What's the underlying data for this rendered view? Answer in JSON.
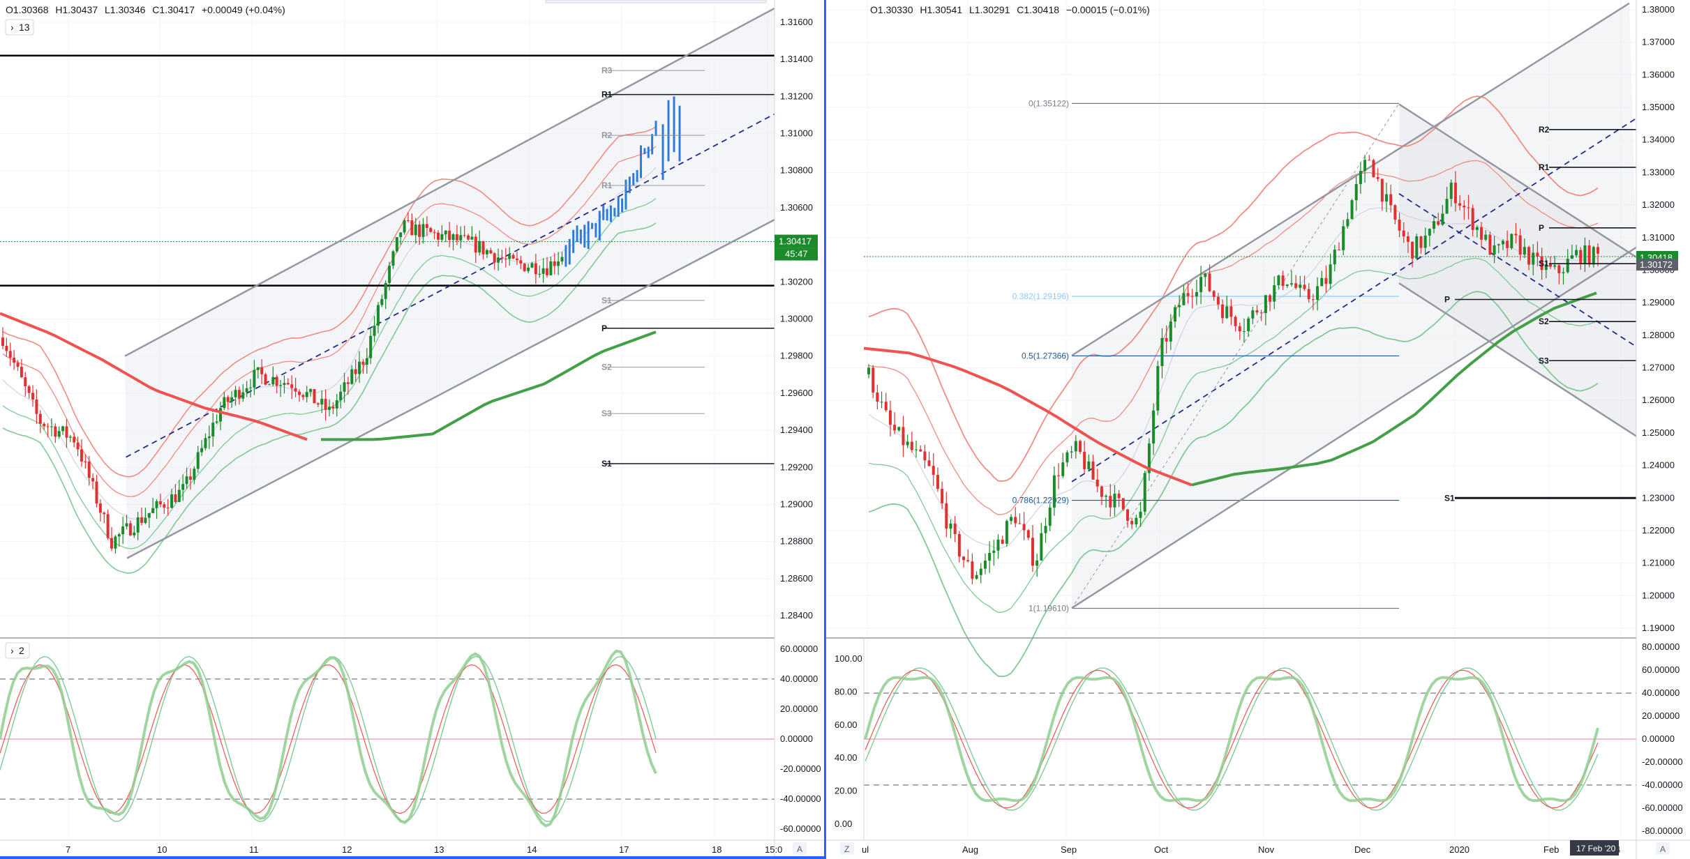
{
  "chart_data": [
    {
      "type": "candlestick",
      "panel": "left",
      "ohlc_legend": {
        "open": "O1.30368",
        "high": "H1.30437",
        "low": "L1.30346",
        "close": "C1.30417",
        "change": "+0.00049 (+0.04%)"
      },
      "indicator_toggle": "13",
      "x_ticks": [
        "7",
        "10",
        "11",
        "12",
        "13",
        "14",
        "17",
        "18",
        "15:0"
      ],
      "y_ticks": [
        "1.31600",
        "1.31400",
        "1.31200",
        "1.31000",
        "1.30800",
        "1.30600",
        "1.30400",
        "1.30200",
        "1.30000",
        "1.29800",
        "1.29600",
        "1.29400",
        "1.29200",
        "1.29000",
        "1.28800",
        "1.28600",
        "1.28400"
      ],
      "ylim": [
        1.2828,
        1.3172
      ],
      "last_price": "1.30417",
      "countdown": "45:47",
      "horizontal_levels": [
        1.3142,
        1.3018
      ],
      "pivot_levels": [
        {
          "label": "R3",
          "value": 1.3134
        },
        {
          "label": "R1",
          "value": 1.3121
        },
        {
          "label": "R2",
          "value": 1.3099
        },
        {
          "label": "R1",
          "value": 1.3072
        },
        {
          "label": "S1",
          "value": 1.301
        },
        {
          "label": "P",
          "value": 1.2995
        },
        {
          "label": "S2",
          "value": 1.2974
        },
        {
          "label": "S3",
          "value": 1.2949
        },
        {
          "label": "S1",
          "value": 1.2922
        }
      ],
      "channel": {
        "upper": [
          {
            "x": "10",
            "y": 1.298
          },
          {
            "x": "17",
            "y": 1.316
          }
        ],
        "lower": [
          {
            "x": "10",
            "y": 1.2871
          },
          {
            "x": "17",
            "y": 1.3046
          }
        ],
        "mid": [
          {
            "x": "10",
            "y": 1.2926
          },
          {
            "x": "17",
            "y": 1.3103
          }
        ]
      },
      "moving_average_red": [
        1.3003,
        1.2992,
        1.2978,
        1.2962,
        1.2952,
        1.2945,
        1.2935
      ],
      "moving_average_green": [
        1.2935,
        1.2935,
        1.2938,
        1.2955,
        1.2965,
        1.2982,
        1.2993
      ],
      "close_path": [
        1.299,
        1.2945,
        1.2935,
        1.288,
        1.2895,
        1.2908,
        1.2952,
        1.297,
        1.2965,
        1.295,
        1.298,
        1.305,
        1.3045,
        1.304,
        1.303,
        1.3028,
        1.3045,
        1.306,
        1.3105
      ]
    },
    {
      "type": "stochastic",
      "panel": "left-lower",
      "indicator_toggle": "2",
      "y_ticks": [
        "60.00000",
        "40.00000",
        "20.00000",
        "0.00000",
        "-20.00000",
        "-40.00000",
        "-60.00000"
      ],
      "ylim": [
        -65,
        65
      ],
      "levels": [
        -40,
        0,
        40
      ]
    },
    {
      "type": "candlestick",
      "panel": "right",
      "ohlc_legend": {
        "open": "O1.30330",
        "high": "H1.30541",
        "low": "L1.30291",
        "close": "C1.30418",
        "change": "−0.00015 (−0.01%)"
      },
      "x_ticks": [
        "ul",
        "Aug",
        "Sep",
        "Oct",
        "Nov",
        "Dec",
        "2020",
        "Feb",
        "4"
      ],
      "y_ticks": [
        "1.38000",
        "1.37000",
        "1.36000",
        "1.35000",
        "1.34000",
        "1.33000",
        "1.32000",
        "1.31000",
        "1.30000",
        "1.29000",
        "1.28000",
        "1.27000",
        "1.26000",
        "1.25000",
        "1.24000",
        "1.23000",
        "1.22000",
        "1.21000",
        "1.20000",
        "1.19000"
      ],
      "ylim": [
        1.187,
        1.383
      ],
      "last_price": "1.30418",
      "second_price": "1.30172",
      "date_tooltip": "17 Feb '20",
      "fibonacci": [
        {
          "label": "0(1.35122)",
          "value": 1.35122
        },
        {
          "label": "0.382(1.29196)",
          "value": 1.29196
        },
        {
          "label": "0.5(1.27366)",
          "value": 1.27366
        },
        {
          "label": "0.786(1.22929)",
          "value": 1.22929
        },
        {
          "label": "1(1.19610)",
          "value": 1.1961
        }
      ],
      "pivot_levels": [
        {
          "label": "R2",
          "value": 1.3432
        },
        {
          "label": "R1",
          "value": 1.3316
        },
        {
          "label": "P",
          "value": 1.313
        },
        {
          "label": "S1",
          "value": 1.302
        },
        {
          "label": "P",
          "value": 1.291
        },
        {
          "label": "S2",
          "value": 1.2842
        },
        {
          "label": "S3",
          "value": 1.2722
        },
        {
          "label": "S1",
          "value": 1.23
        }
      ]
    },
    {
      "type": "stochastic",
      "panel": "right-lower",
      "y_ticks_left": [
        "100.00",
        "80.00",
        "60.00",
        "40.00",
        "20.00",
        "0.00"
      ],
      "y_ticks_right": [
        "80.00000",
        "60.00000",
        "40.00000",
        "20.00000",
        "0.00000",
        "-20.00000",
        "-40.00000",
        "-60.00000",
        "-80.00000"
      ],
      "ylim_right": [
        -85,
        85
      ],
      "levels": [
        -40,
        0,
        40
      ]
    }
  ],
  "ui": {
    "scale_mode_left": "A",
    "scale_mode_right": "A",
    "zoom_icon_label": "Z"
  }
}
